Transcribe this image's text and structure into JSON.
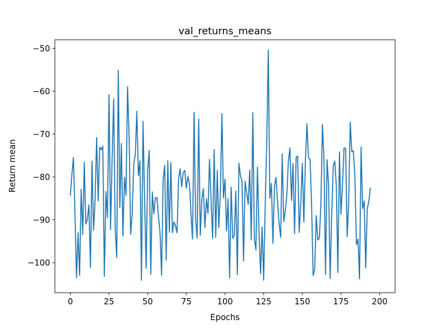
{
  "chart_data": {
    "type": "line",
    "title": "val_returns_means",
    "xlabel": "Epochs",
    "ylabel": "Return mean",
    "xlim": [
      -10,
      210
    ],
    "ylim": [
      -107,
      -48
    ],
    "xticks": [
      0,
      25,
      50,
      75,
      100,
      125,
      150,
      175,
      200
    ],
    "yticks": [
      -100,
      -90,
      -80,
      -70,
      -60,
      -50
    ],
    "grid": false,
    "line_color": "#1f77b4",
    "x_start": 0,
    "x_step": 1,
    "values": [
      -84.4,
      -79.5,
      -75.5,
      -88.7,
      -103.5,
      -93.0,
      -103.0,
      -82.9,
      -93.4,
      -76.6,
      -91.0,
      -89.9,
      -86.5,
      -101.1,
      -76.3,
      -92.4,
      -85.4,
      -70.8,
      -85.6,
      -73.0,
      -73.7,
      -72.8,
      -103.2,
      -83.4,
      -89.5,
      -60.8,
      -92.3,
      -76.0,
      -61.8,
      -91.8,
      -98.8,
      -55.1,
      -87.1,
      -72.2,
      -93.8,
      -80.1,
      -84.3,
      -59.0,
      -70.5,
      -93.4,
      -88.6,
      -77.0,
      -74.8,
      -64.7,
      -79.7,
      -76.2,
      -104.1,
      -67.0,
      -84.8,
      -101.3,
      -78.5,
      -73.8,
      -102.7,
      -83.5,
      -88.6,
      -84.9,
      -84.8,
      -89.2,
      -93.0,
      -102.9,
      -80.8,
      -77.3,
      -99.4,
      -76.2,
      -92.9,
      -76.6,
      -93.0,
      -90.5,
      -91.4,
      -93.0,
      -80.4,
      -78.1,
      -82.3,
      -79.0,
      -78.5,
      -82.6,
      -79.9,
      -81.5,
      -88.4,
      -94.5,
      -64.9,
      -89.7,
      -94.3,
      -66.5,
      -93.6,
      -85.3,
      -82.7,
      -91.8,
      -85.1,
      -88.5,
      -75.9,
      -85.3,
      -94.4,
      -73.6,
      -94.1,
      -78.5,
      -91.8,
      -83.8,
      -65.2,
      -84.9,
      -80.5,
      -92.6,
      -85.1,
      -103.6,
      -82.4,
      -94.3,
      -93.7,
      -83.3,
      -102.8,
      -76.8,
      -79.7,
      -81.0,
      -99.6,
      -81.0,
      -83.7,
      -86.4,
      -78.4,
      -94.7,
      -65.0,
      -94.4,
      -97.0,
      -77.7,
      -92.9,
      -102.6,
      -91.7,
      -104.1,
      -86.5,
      -72.0,
      -50.4,
      -85.0,
      -81.5,
      -95.5,
      -82.3,
      -80.1,
      -85.9,
      -90.9,
      -94.1,
      -74.6,
      -90.4,
      -87.9,
      -84.1,
      -76.2,
      -73.2,
      -85.5,
      -76.9,
      -93.2,
      -75.5,
      -75.1,
      -92.9,
      -86.1,
      -76.8,
      -90.5,
      -76.2,
      -67.6,
      -75.5,
      -75.9,
      -86.4,
      -103.0,
      -101.6,
      -89.0,
      -94.7,
      -94.3,
      -86.7,
      -67.8,
      -76.0,
      -102.8,
      -76.0,
      -82.1,
      -103.7,
      -88.9,
      -77.5,
      -76.3,
      -82.2,
      -102.3,
      -74.2,
      -88.7,
      -81.6,
      -73.2,
      -73.4,
      -93.9,
      -85.7,
      -67.2,
      -74.1,
      -73.9,
      -79.9,
      -95.8,
      -94.5,
      -103.8,
      -73.0,
      -87.4,
      -85.6,
      -101.2,
      -87.4,
      -85.8,
      -82.5
    ]
  }
}
